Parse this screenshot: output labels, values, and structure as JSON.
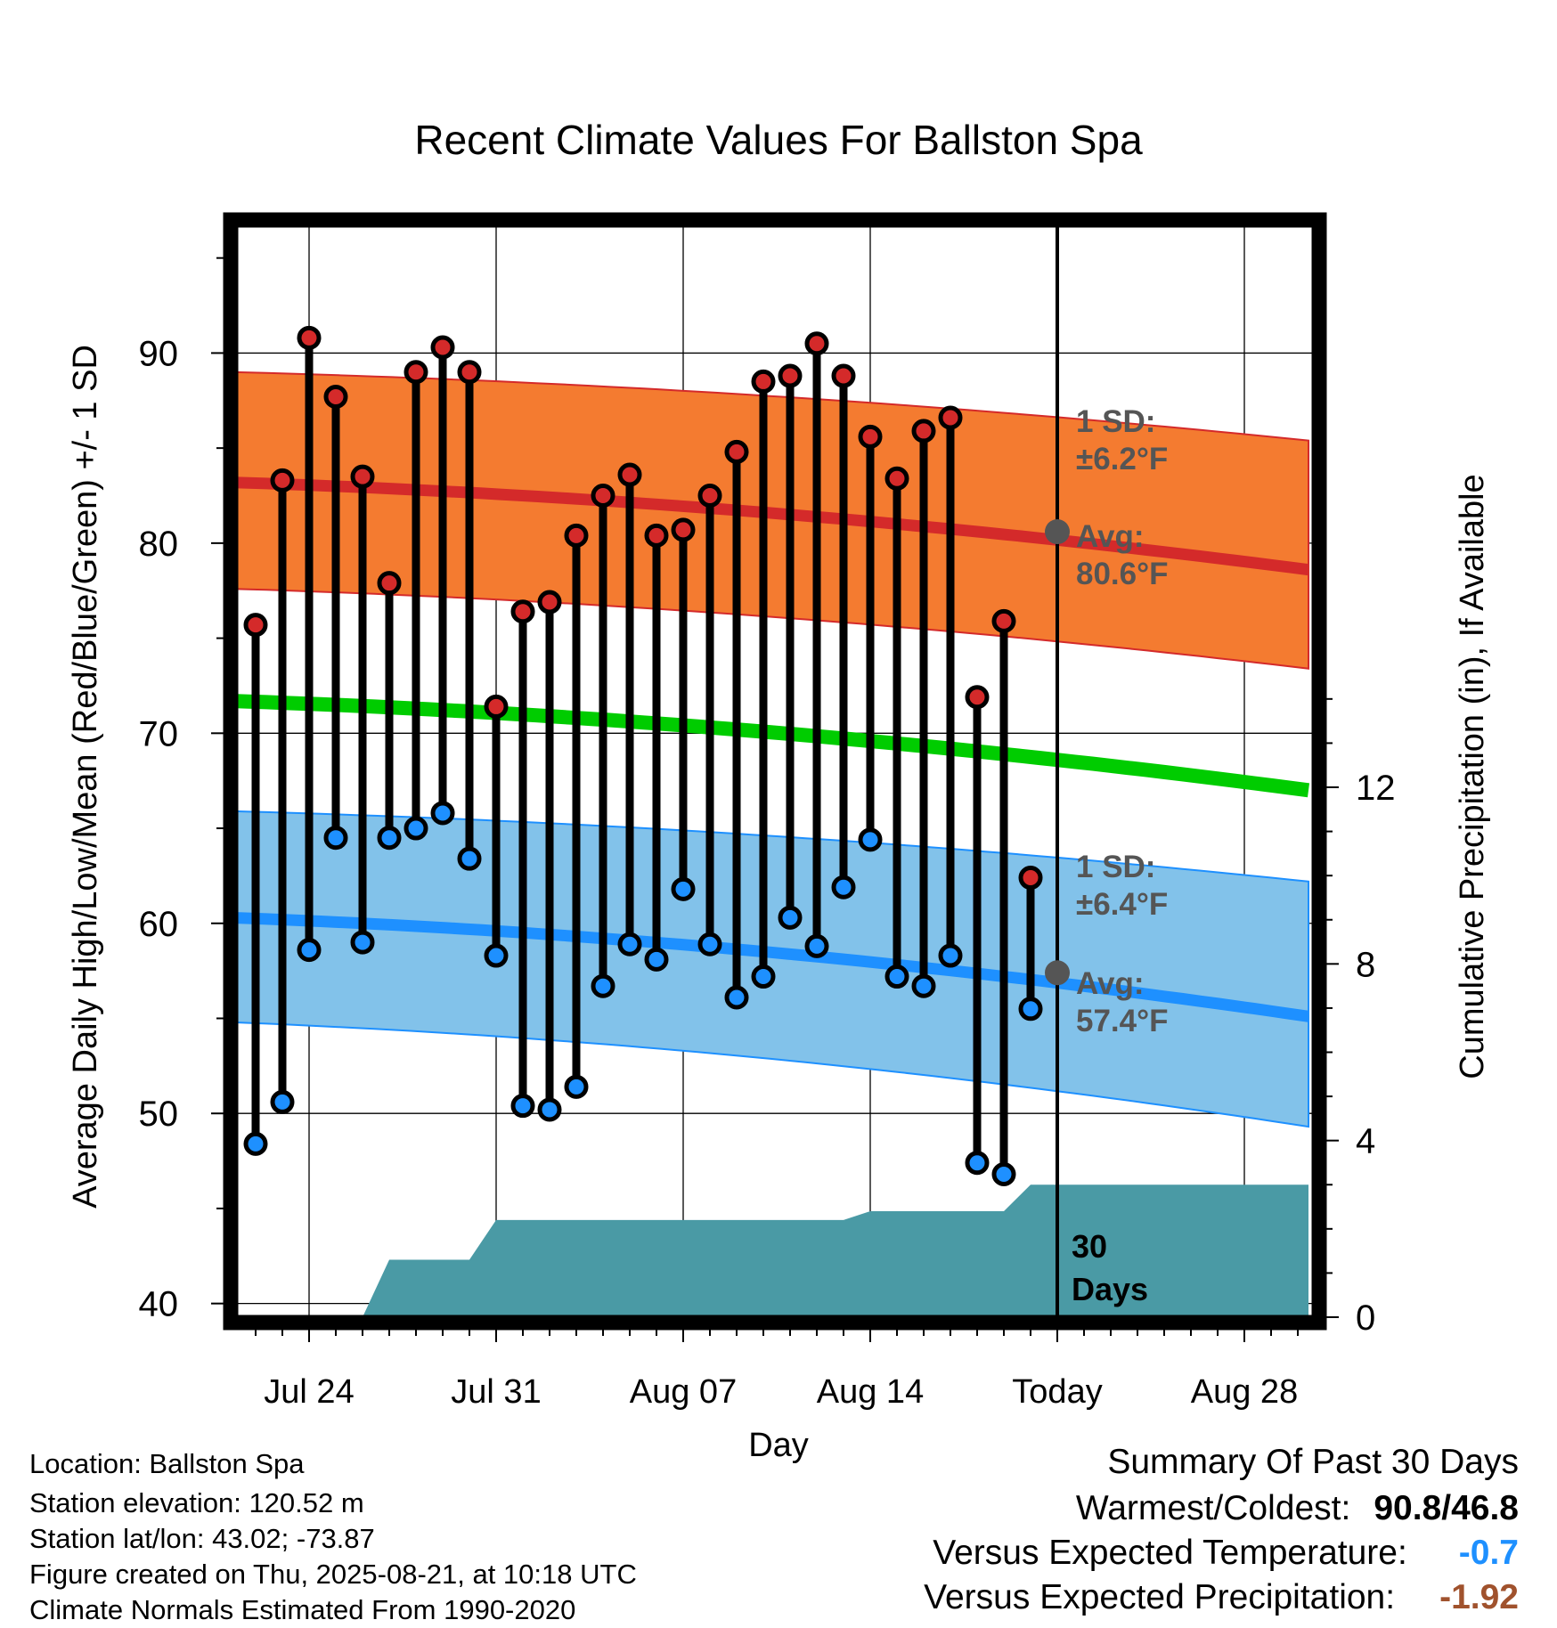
{
  "chart_data": {
    "type": "line",
    "title": "Recent Climate Values For Ballston Spa",
    "xlabel": "Day",
    "ylabel": "Average Daily High/Low/Mean (Red/Blue/Green) +/- 1 SD",
    "y2label": "Cumulative Precipitation (in), If Available",
    "ylim": [
      39,
      97
    ],
    "y2lim": [
      0,
      24
    ],
    "y_ticks": [
      "40",
      "50",
      "60",
      "70",
      "80",
      "90"
    ],
    "y2_ticks": [
      "0",
      "4",
      "8",
      "12"
    ],
    "x_tick_labels": [
      "Jul 24",
      "Jul 31",
      "Aug 07",
      "Aug 14",
      "Today",
      "Aug 28"
    ],
    "grid": true,
    "days": [
      "Jul 22",
      "Jul 23",
      "Jul 24",
      "Jul 25",
      "Jul 26",
      "Jul 27",
      "Jul 28",
      "Jul 29",
      "Jul 30",
      "Jul 31",
      "Aug 01",
      "Aug 02",
      "Aug 03",
      "Aug 04",
      "Aug 05",
      "Aug 06",
      "Aug 07",
      "Aug 08",
      "Aug 09",
      "Aug 10",
      "Aug 11",
      "Aug 12",
      "Aug 13",
      "Aug 14",
      "Aug 15",
      "Aug 16",
      "Aug 17",
      "Aug 18",
      "Aug 19",
      "Aug 20"
    ],
    "series": [
      {
        "name": "Daily High",
        "color": "#d42a2a",
        "values": [
          75.7,
          83.3,
          90.8,
          87.7,
          83.5,
          77.9,
          89.0,
          90.3,
          89.0,
          71.4,
          76.4,
          76.9,
          80.4,
          82.5,
          83.6,
          80.4,
          80.7,
          82.5,
          84.8,
          88.5,
          88.8,
          90.5,
          88.8,
          85.6,
          83.4,
          85.9,
          86.6,
          71.9,
          75.9,
          62.4
        ]
      },
      {
        "name": "Daily Low",
        "color": "#1e90ff",
        "values": [
          48.4,
          50.6,
          58.6,
          64.5,
          59.0,
          64.5,
          65.0,
          65.8,
          63.4,
          58.3,
          50.4,
          50.2,
          51.4,
          56.7,
          58.9,
          58.1,
          61.8,
          58.9,
          56.1,
          57.2,
          60.3,
          58.8,
          61.9,
          64.4,
          57.2,
          56.7,
          58.3,
          47.4,
          46.8,
          55.5
        ]
      }
    ],
    "normals": {
      "high_mean": {
        "color": "#d42a2a",
        "start": 83.2,
        "today": 80.6,
        "end": 78.6
      },
      "high_sd_band": {
        "color": "#f47b30",
        "start_upper": 89.0,
        "start_lower": 77.6,
        "end_upper": 85.4,
        "end_lower": 73.4
      },
      "mean": {
        "color": "#00cc00",
        "start": 71.7,
        "end": 67.0
      },
      "low_mean": {
        "color": "#1e90ff",
        "start": 60.3,
        "today": 57.4,
        "end": 55.1
      },
      "low_sd_band": {
        "color": "#82c2ea",
        "start_upper": 65.9,
        "start_lower": 54.8,
        "end_upper": 62.2,
        "end_lower": 49.3
      }
    },
    "precipitation": {
      "color": "#4a9aa5",
      "label_number": "30",
      "label_word": "Days",
      "cumulative_in": [
        0,
        0,
        0,
        0,
        0,
        1.3,
        1.3,
        1.3,
        1.3,
        2.2,
        2.2,
        2.2,
        2.2,
        2.2,
        2.2,
        2.2,
        2.2,
        2.2,
        2.2,
        2.2,
        2.2,
        2.2,
        2.2,
        2.4,
        2.4,
        2.4,
        2.4,
        2.4,
        2.4,
        3.0,
        3.0
      ]
    },
    "annotations": {
      "high_sd_line1": "1 SD:",
      "high_sd_line2": "±6.2°F",
      "high_avg_line1": "Avg:",
      "high_avg_line2": "80.6°F",
      "low_sd_line1": "1 SD:",
      "low_sd_line2": "±6.4°F",
      "low_avg_line1": "Avg:",
      "low_avg_line2": "57.4°F"
    }
  },
  "footer": {
    "location": "Location: Ballston Spa",
    "elevation": "Station elevation: 120.52 m",
    "latlon": "Station lat/lon: 43.02; -73.87",
    "created": "Figure created on Thu, 2025-08-21, at 10:18 UTC",
    "normals": "Climate Normals Estimated From 1990-2020"
  },
  "summary": {
    "title": "Summary Of Past 30 Days",
    "warmest_label": "Warmest/Coldest:",
    "warmest_value": "90.8/46.8",
    "temp_label": "Versus Expected Temperature:",
    "temp_value": "-0.7",
    "precip_label": "Versus Expected Precipitation:",
    "precip_value": "-1.92"
  }
}
